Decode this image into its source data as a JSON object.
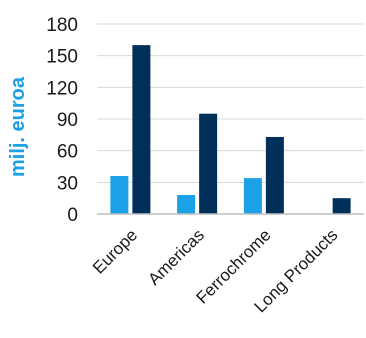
{
  "chart_data": {
    "type": "bar",
    "categories": [
      "Europe",
      "Americas",
      "Ferrochrome",
      "Long Products"
    ],
    "series": [
      {
        "values": [
          36,
          18,
          34,
          0
        ],
        "color": "#1ca0e6"
      },
      {
        "values": [
          160,
          95,
          73,
          15
        ],
        "color": "#00305a"
      }
    ],
    "xlabel": "",
    "ylabel": "milj. euroa",
    "ylabel_color": "#1ca0e6",
    "ylim": [
      0,
      180
    ],
    "yticks": [
      0,
      30,
      60,
      90,
      120,
      150,
      180
    ],
    "grid": true,
    "legend": "none"
  }
}
